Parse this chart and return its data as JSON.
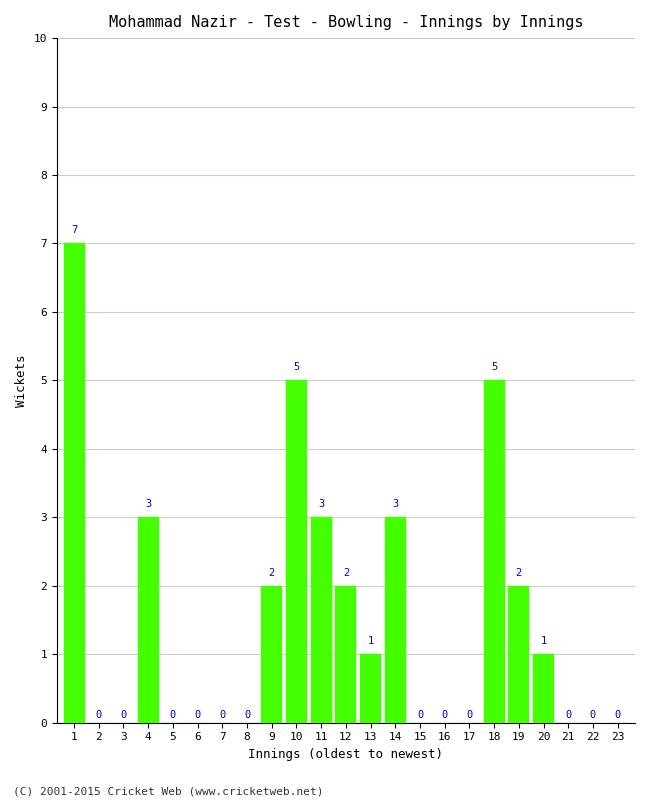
{
  "title": "Mohammad Nazir - Test - Bowling - Innings by Innings",
  "xlabel": "Innings (oldest to newest)",
  "ylabel": "Wickets",
  "footer": "(C) 2001-2015 Cricket Web (www.cricketweb.net)",
  "innings": [
    1,
    2,
    3,
    4,
    5,
    6,
    7,
    8,
    9,
    10,
    11,
    12,
    13,
    14,
    15,
    16,
    17,
    18,
    19,
    20,
    21,
    22,
    23
  ],
  "wickets": [
    7,
    0,
    0,
    3,
    0,
    0,
    0,
    0,
    2,
    5,
    3,
    2,
    1,
    3,
    0,
    0,
    0,
    5,
    2,
    1,
    0,
    0,
    0
  ],
  "bar_color": "#44ff00",
  "bar_edge_color": "#44ff00",
  "label_color": "#0000cc",
  "ylim": [
    0,
    10
  ],
  "yticks": [
    0,
    1,
    2,
    3,
    4,
    5,
    6,
    7,
    8,
    9,
    10
  ],
  "grid_color": "#cccccc",
  "bg_color": "#ffffff",
  "title_fontsize": 11,
  "label_fontsize": 9,
  "tick_fontsize": 8,
  "footer_fontsize": 8,
  "bar_label_fontsize": 7.5
}
